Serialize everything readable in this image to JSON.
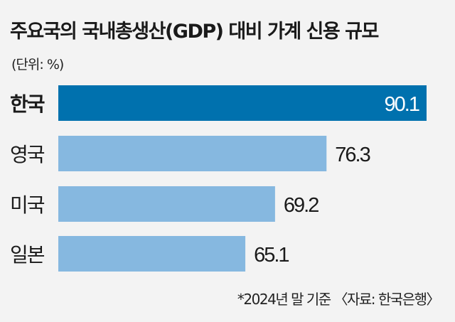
{
  "title": "주요국의 국내총생산(GDP) 대비 가계 신용 규모",
  "unit_label": "(단위: %)",
  "source_note": "*2024년 말 기준 〈자료: 한국은행〉",
  "chart_data": {
    "type": "bar",
    "orientation": "horizontal",
    "title": "주요국의 국내총생산(GDP) 대비 가계 신용 규모",
    "unit": "%",
    "categories": [
      "한국",
      "영국",
      "미국",
      "일본"
    ],
    "values": [
      90.1,
      76.3,
      69.2,
      65.1
    ],
    "xlim": [
      39.3,
      90.1
    ],
    "grid": false,
    "highlight_index": 0,
    "colors": {
      "highlight": "#0071ae",
      "default": "#86b8e0",
      "background": "#f3f3f3"
    }
  }
}
